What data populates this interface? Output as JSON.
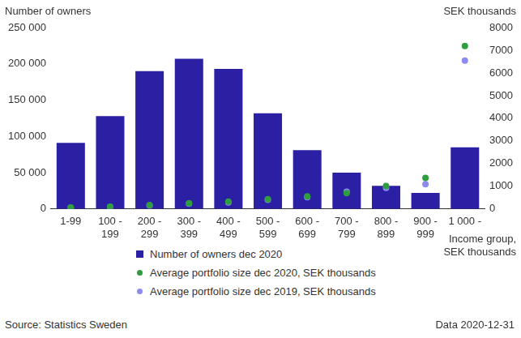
{
  "chart_data": {
    "type": "bar",
    "categories": [
      "1-99",
      [
        "100 -",
        "199"
      ],
      [
        "200 -",
        "299"
      ],
      [
        "300 -",
        "399"
      ],
      [
        "400 -",
        "499"
      ],
      [
        "500 -",
        "599"
      ],
      [
        "600 -",
        "699"
      ],
      [
        "700 -",
        "799"
      ],
      [
        "800 -",
        "899"
      ],
      [
        "900 -",
        "999"
      ],
      [
        "1 000 -"
      ]
    ],
    "ylabel": "Number of owners",
    "y2label": "SEK thousands",
    "xlabel": [
      "Income group,",
      "SEK thousands"
    ],
    "annotations": [
      "Source: Statistics Sweden",
      "Data 2020-12-31"
    ],
    "series": [
      {
        "name": "Number of owners dec 2020",
        "type": "bar",
        "color": "#2b1fa3",
        "values": [
          91000,
          128000,
          190000,
          207000,
          193000,
          132000,
          81000,
          50000,
          32000,
          22000,
          85000
        ]
      },
      {
        "name": "Average portfolio size dec 2020, SEK thousands",
        "type": "scatter",
        "marker": "circle",
        "axis": "y2",
        "color": "#2e9e3e",
        "values": [
          60,
          100,
          170,
          250,
          320,
          430,
          560,
          700,
          1010,
          1370,
          7190
        ]
      },
      {
        "name": "Average portfolio size dec 2019, SEK thousands",
        "type": "scatter",
        "marker": "circle",
        "axis": "y2",
        "color": "#8c8cf0",
        "values": [
          55,
          90,
          150,
          230,
          290,
          400,
          520,
          760,
          930,
          1090,
          6540
        ]
      }
    ],
    "ylim": [
      0,
      250000
    ],
    "yticks": [
      0,
      {
        "value": 50000,
        "label": "50 000"
      },
      {
        "value": 100000,
        "label": "100 000"
      },
      {
        "value": 150000,
        "label": "150 000"
      },
      {
        "value": 200000,
        "label": "200 000"
      },
      {
        "value": 250000,
        "label": "250 000"
      }
    ],
    "y2lim": [
      0,
      8000
    ],
    "y2ticks": [
      0,
      1000,
      2000,
      3000,
      4000,
      5000,
      6000,
      7000,
      8000
    ],
    "grid": false,
    "legend": "bottom"
  }
}
